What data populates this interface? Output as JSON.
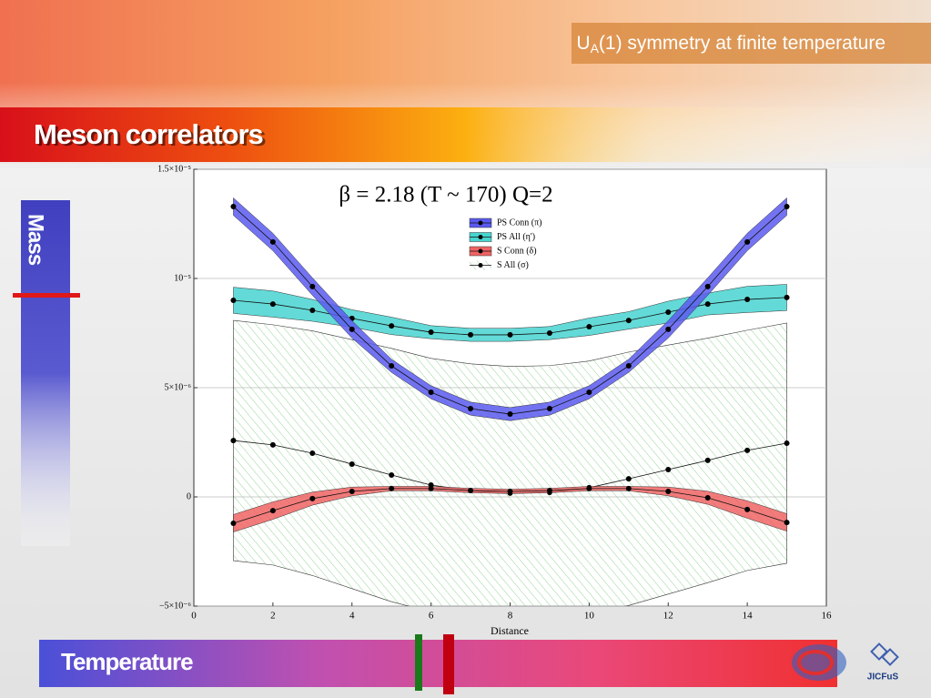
{
  "slide": {
    "header": {
      "main": "U",
      "sub": "A",
      "rest": "(1) symmetry at finite temperature"
    },
    "banner": "Meson correlators",
    "side_label": "Mass",
    "bottom_label": "Temperature",
    "logo": "JICFuS"
  },
  "chart_data": {
    "type": "line",
    "annotation": "β = 2.18 (T ~ 170) Q=2",
    "x_label": "Distance",
    "x": [
      1,
      2,
      3,
      4,
      5,
      6,
      7,
      8,
      9,
      10,
      11,
      12,
      13,
      14,
      15
    ],
    "xlim": [
      0,
      16
    ],
    "xticks": [
      0,
      2,
      4,
      6,
      8,
      10,
      12,
      14,
      16
    ],
    "ylim": [
      -5e-06,
      1.5e-05
    ],
    "yticks": [
      {
        "value": -5e-06,
        "label": "−5×10⁻⁶"
      },
      0,
      {
        "value": 5e-06,
        "label": "5×10⁻⁶"
      },
      {
        "value": 1e-05,
        "label": "10⁻⁵"
      },
      {
        "value": 1.5e-05,
        "label": "1.5×10⁻⁵"
      }
    ],
    "grid": true,
    "series": [
      {
        "name": "PS Conn (π)",
        "color": "#5a5af0",
        "band": "solid",
        "values": [
          1.329e-05,
          1.167e-05,
          9.63e-06,
          7.67e-06,
          6e-06,
          4.79e-06,
          4.04e-06,
          3.79e-06,
          4.04e-06,
          4.79e-06,
          6e-06,
          7.67e-06,
          9.63e-06,
          1.167e-05,
          1.329e-05
        ],
        "errors": [
          4e-07,
          4e-07,
          4e-07,
          4e-07,
          3e-07,
          3e-07,
          3e-07,
          3e-07,
          3e-07,
          3e-07,
          3e-07,
          4e-07,
          4e-07,
          4e-07,
          4e-07
        ]
      },
      {
        "name": "PS All (η')",
        "color": "#48d4d0",
        "band": "solid",
        "values": [
          9e-06,
          8.83e-06,
          8.54e-06,
          8.17e-06,
          7.83e-06,
          7.54e-06,
          7.42e-06,
          7.42e-06,
          7.5e-06,
          7.79e-06,
          8.08e-06,
          8.46e-06,
          8.83e-06,
          9.04e-06,
          9.13e-06
        ],
        "errors": [
          6e-07,
          6e-07,
          5e-07,
          4e-07,
          4e-07,
          3e-07,
          3e-07,
          3e-07,
          3e-07,
          4e-07,
          4e-07,
          5e-07,
          5e-07,
          6e-07,
          6e-07
        ]
      },
      {
        "name": "S Conn (δ)",
        "color": "#f06464",
        "band": "solid",
        "values": [
          -1.21e-06,
          -6.3e-07,
          -8e-08,
          2.5e-07,
          3.8e-07,
          3.8e-07,
          2.9e-07,
          2.5e-07,
          2.9e-07,
          3.8e-07,
          3.8e-07,
          2.5e-07,
          -4e-08,
          -5.8e-07,
          -1.17e-06
        ],
        "errors": [
          4e-07,
          4e-07,
          3e-07,
          2e-07,
          1e-07,
          1e-07,
          1e-07,
          1e-07,
          1e-07,
          1e-07,
          1e-07,
          2e-07,
          3e-07,
          4e-07,
          4e-07
        ]
      },
      {
        "name": "S All (σ)",
        "color": "#7cc87c",
        "band": "hatch",
        "values": [
          2.58e-06,
          2.38e-06,
          2e-06,
          1.5e-06,
          1e-06,
          5.4e-07,
          2.9e-07,
          1.7e-07,
          2.1e-07,
          4.2e-07,
          8.3e-07,
          1.25e-06,
          1.67e-06,
          2.13e-06,
          2.46e-06
        ],
        "errors": [
          5.5e-06,
          5.5e-06,
          5.6e-06,
          5.7e-06,
          5.8e-06,
          5.8e-06,
          5.8e-06,
          5.8e-06,
          5.8e-06,
          5.8e-06,
          5.8e-06,
          5.7e-06,
          5.6e-06,
          5.5e-06,
          5.5e-06
        ]
      }
    ]
  }
}
